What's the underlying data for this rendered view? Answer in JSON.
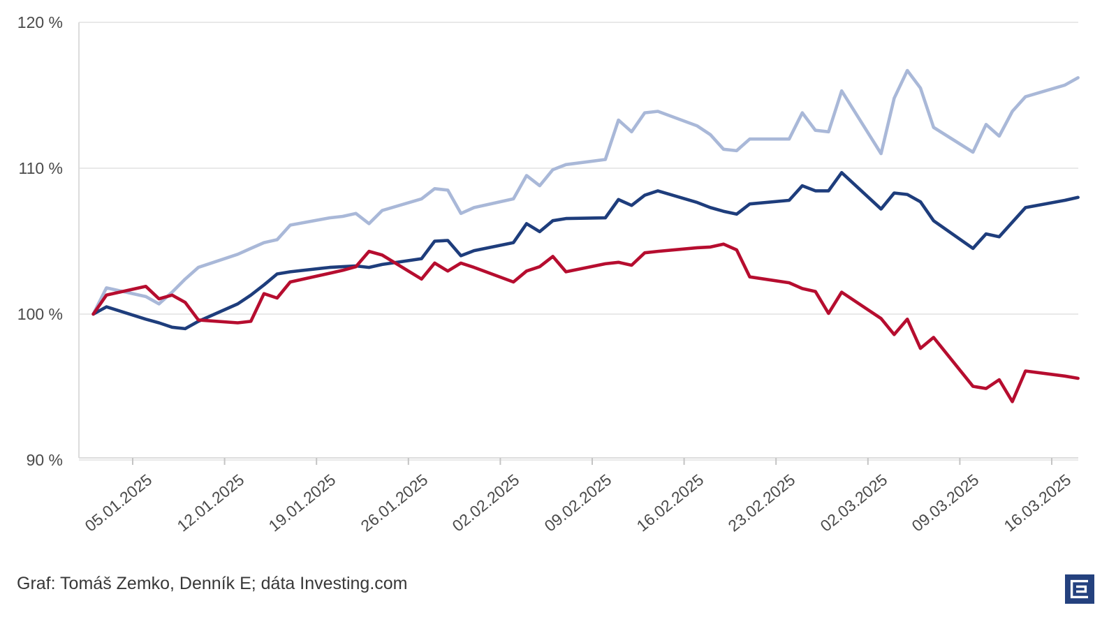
{
  "chart_data": {
    "type": "line",
    "title": "",
    "legend": "none",
    "grid": "horizontal",
    "ylim": [
      90,
      120
    ],
    "y_tick_values": [
      120,
      110,
      100,
      90
    ],
    "y_tick_labels": [
      "120 %",
      "110 %",
      "100 %",
      "90 %"
    ],
    "x_tick_labels": [
      "05.01.2025",
      "12.01.2025",
      "19.01.2025",
      "26.01.2025",
      "02.02.2025",
      "09.02.2025",
      "16.02.2025",
      "23.02.2025",
      "02.03.2025",
      "09.03.2025",
      "16.03.2025"
    ],
    "x_start_date": "02.01.2025",
    "x_end_date": "18.03.2025",
    "unit": "percent of starting value",
    "dates": [
      "02.01.2025",
      "03.01.2025",
      "06.01.2025",
      "07.01.2025",
      "08.01.2025",
      "09.01.2025",
      "10.01.2025",
      "13.01.2025",
      "14.01.2025",
      "15.01.2025",
      "16.01.2025",
      "17.01.2025",
      "20.01.2025",
      "21.01.2025",
      "22.01.2025",
      "23.01.2025",
      "24.01.2025",
      "27.01.2025",
      "28.01.2025",
      "29.01.2025",
      "30.01.2025",
      "31.01.2025",
      "03.02.2025",
      "04.02.2025",
      "05.02.2025",
      "06.02.2025",
      "07.02.2025",
      "10.02.2025",
      "11.02.2025",
      "12.02.2025",
      "13.02.2025",
      "14.02.2025",
      "17.02.2025",
      "18.02.2025",
      "19.02.2025",
      "20.02.2025",
      "21.02.2025",
      "24.02.2025",
      "25.02.2025",
      "26.02.2025",
      "27.02.2025",
      "28.02.2025",
      "03.03.2025",
      "04.03.2025",
      "05.03.2025",
      "06.03.2025",
      "07.03.2025",
      "10.03.2025",
      "11.03.2025",
      "12.03.2025",
      "13.03.2025",
      "14.03.2025",
      "17.03.2025",
      "18.03.2025"
    ],
    "series": [
      {
        "name": "series-light-blue",
        "color": "#a9b8d8",
        "values": [
          100,
          101.8,
          101.2,
          100.7,
          101.5,
          102.4,
          103.2,
          104.1,
          104.5,
          104.9,
          105.1,
          106.1,
          106.6,
          106.7,
          106.9,
          106.2,
          107.1,
          107.9,
          108.6,
          108.5,
          106.9,
          107.3,
          107.9,
          109.5,
          108.8,
          109.9,
          110.25,
          110.6,
          113.3,
          112.5,
          113.8,
          113.9,
          112.9,
          112.3,
          111.3,
          111.2,
          112.0,
          112.0,
          113.8,
          112.6,
          112.5,
          115.3,
          111.0,
          114.8,
          116.7,
          115.5,
          112.8,
          111.1,
          113.0,
          112.2,
          113.9,
          114.9,
          115.7,
          116.2
        ]
      },
      {
        "name": "series-dark-blue",
        "color": "#1e3d7c",
        "values": [
          100,
          100.5,
          99.65,
          99.4,
          99.1,
          99.0,
          99.5,
          100.7,
          101.3,
          102.0,
          102.75,
          102.9,
          103.2,
          103.25,
          103.3,
          103.2,
          103.4,
          103.8,
          105.0,
          105.05,
          104.0,
          104.35,
          104.9,
          106.2,
          105.65,
          106.4,
          106.55,
          106.6,
          107.85,
          107.45,
          108.15,
          108.45,
          107.65,
          107.3,
          107.05,
          106.85,
          107.55,
          107.8,
          108.8,
          108.45,
          108.45,
          109.7,
          107.2,
          108.3,
          108.2,
          107.7,
          106.4,
          104.5,
          105.5,
          105.3,
          106.3,
          107.3,
          107.8,
          108.0
        ]
      },
      {
        "name": "series-red",
        "color": "#b60d2f",
        "values": [
          100,
          101.3,
          101.9,
          101.05,
          101.3,
          100.8,
          99.6,
          99.4,
          99.5,
          101.4,
          101.1,
          102.2,
          102.8,
          103.0,
          103.25,
          104.3,
          104.05,
          102.4,
          103.5,
          102.95,
          103.5,
          103.2,
          102.2,
          102.95,
          103.25,
          103.95,
          102.9,
          103.45,
          103.55,
          103.35,
          104.2,
          104.3,
          104.55,
          104.6,
          104.8,
          104.4,
          102.55,
          102.15,
          101.75,
          101.55,
          100.05,
          101.5,
          99.7,
          98.6,
          99.65,
          97.65,
          98.4,
          95.05,
          94.9,
          95.5,
          94.0,
          96.1,
          95.75,
          95.6
        ]
      }
    ]
  },
  "attribution": {
    "text": "Graf: Tomáš Zemko, Denník E; dáta Investing.com"
  },
  "logo": {
    "label": "dennik-e-logo",
    "background": "#24417e",
    "glyph_color": "#ffffff"
  },
  "colors": {
    "background": "#ffffff",
    "grid": "#e9e9e9",
    "axis": "#dcdcdc",
    "tick_text": "#4a4a4a",
    "attribution_text": "#383838"
  }
}
